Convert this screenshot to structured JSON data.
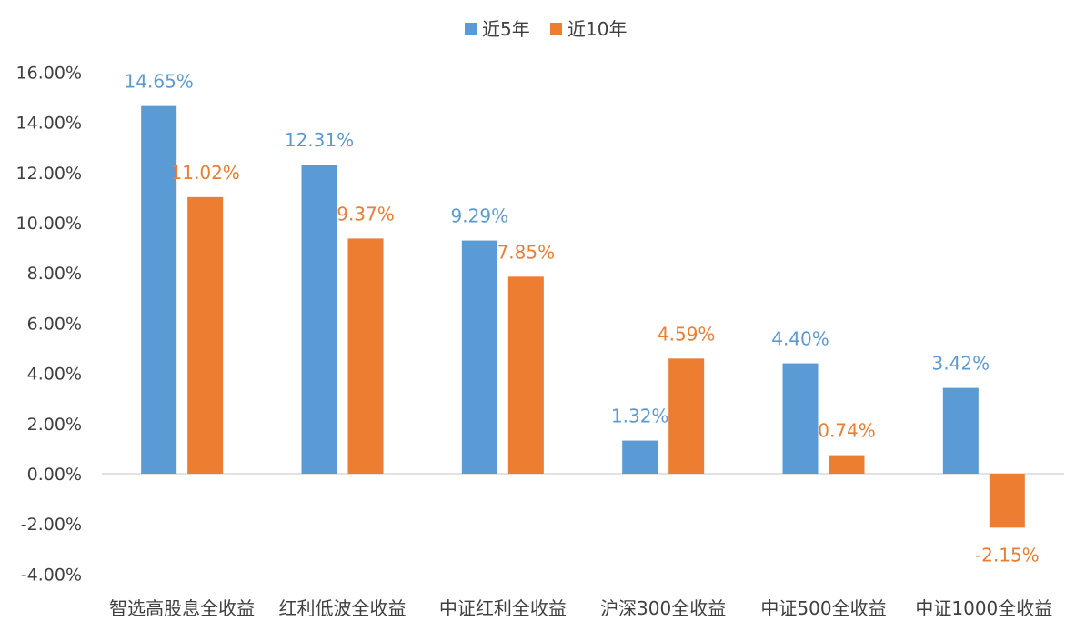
{
  "chart_data": {
    "type": "bar",
    "title": "",
    "xlabel": "",
    "ylabel": "",
    "categories": [
      "智选高股息全收益",
      "红利低波全收益",
      "中证红利全收益",
      "沪深300全收益",
      "中证500全收益",
      "中证1000全收益"
    ],
    "series": [
      {
        "name": "近5年",
        "color": "#5B9BD5",
        "values": [
          14.65,
          12.31,
          9.29,
          1.32,
          4.4,
          3.42
        ],
        "labels": [
          "14.65%",
          "12.31%",
          "9.29%",
          "1.32%",
          "4.40%",
          "3.42%"
        ]
      },
      {
        "name": "近10年",
        "color": "#ED7D31",
        "values": [
          11.02,
          9.37,
          7.85,
          4.59,
          0.74,
          -2.15
        ],
        "labels": [
          "11.02%",
          "9.37%",
          "7.85%",
          "4.59%",
          "0.74%",
          "-2.15%"
        ]
      }
    ],
    "ylim": [
      -4,
      16
    ],
    "yticks": [
      16,
      14,
      12,
      10,
      8,
      6,
      4,
      2,
      0,
      -2,
      -4
    ],
    "ytick_labels": [
      "16.00%",
      "14.00%",
      "12.00%",
      "10.00%",
      "8.00%",
      "6.00%",
      "4.00%",
      "2.00%",
      "0.00%",
      "-2.00%",
      "-4.00%"
    ],
    "grid": false,
    "legend_position": "top-center",
    "value_unit": "%"
  }
}
